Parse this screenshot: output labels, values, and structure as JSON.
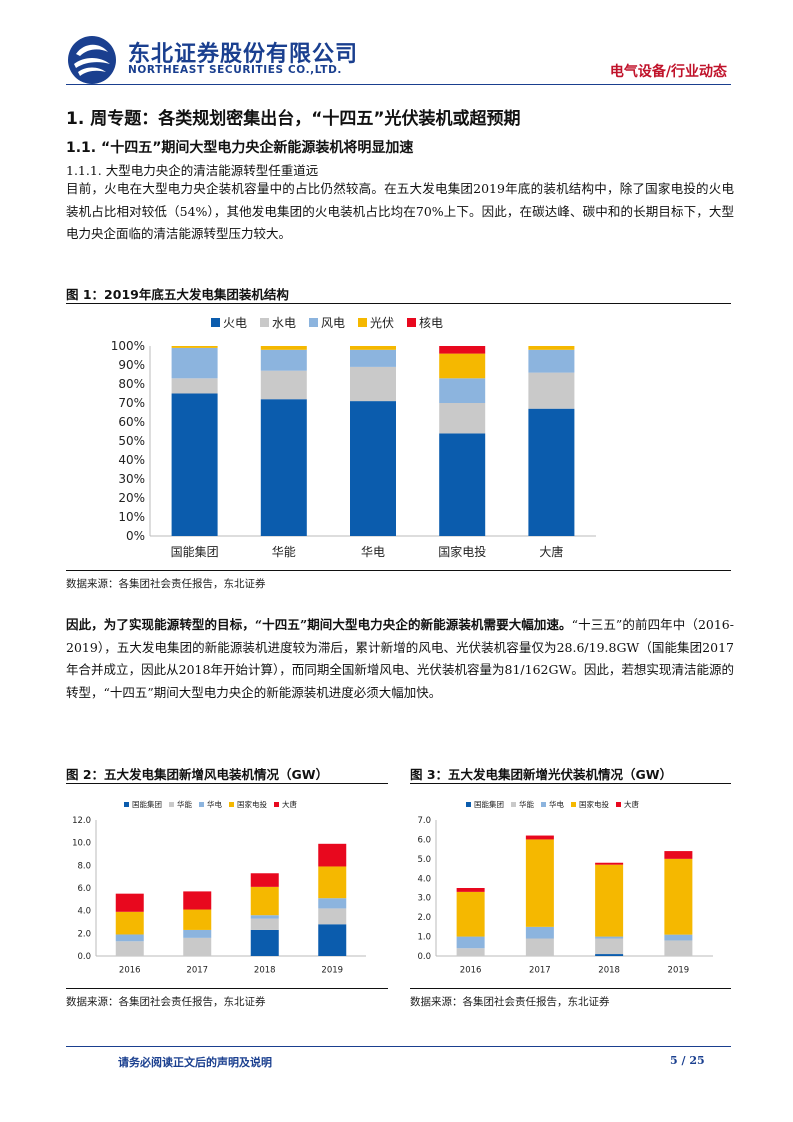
{
  "header": {
    "company_cn": "东北证券股份有限公司",
    "company_en": "NORTHEAST SECURITIES CO.,LTD.",
    "report_type": "电气设备/行业动态"
  },
  "section": {
    "h1": "1.  周专题：各类规划密集出台，“十四五”光伏装机或超预期",
    "h2": "1.1.   “十四五”期间大型电力央企新能源装机将明显加速",
    "h3": "1.1.1.   大型电力央企的清洁能源转型任重道远",
    "para1": "目前，火电在大型电力央企装机容量中的占比仍然较高。在五大发电集团2019年底的装机结构中，除了国家电投的火电装机占比相对较低（54%），其他发电集团的火电装机占比均在70%上下。因此，在碳达峰、碳中和的长期目标下，大型电力央企面临的清洁能源转型压力较大。",
    "para2_bold": "因此，为了实现能源转型的目标，“十四五”期间大型电力央企的新能源装机需要大幅加速。",
    "para2_rest": "“十三五”的前四年中（2016-2019），五大发电集团的新能源装机进度较为滞后，累计新增的风电、光伏装机容量仅为28.6/19.8GW（国能集团2017年合并成立，因此从2018年开始计算），而同期全国新增风电、光伏装机容量为81/162GW。因此，若想实现清洁能源的转型，“十四五”期间大型电力央企的新能源装机进度必须大幅加快。"
  },
  "figures": {
    "fig1_title": "图 1：2019年底五大发电集团装机结构",
    "fig2_title": "图 2：五大发电集团新增风电装机情况（GW）",
    "fig3_title": "图 3：五大发电集团新增光伏装机情况（GW）",
    "source": "数据来源：各集团社会责任报告，东北证券"
  },
  "chart_data": [
    {
      "type": "bar",
      "stacked": true,
      "title": "",
      "categories": [
        "国能集团",
        "华能",
        "华电",
        "国家电投",
        "大唐"
      ],
      "series": [
        {
          "name": "火电",
          "values": [
            75,
            72,
            71,
            54,
            67
          ],
          "color": "#0b5cad"
        },
        {
          "name": "水电",
          "values": [
            8,
            15,
            18,
            16,
            19
          ],
          "color": "#c9c9c9"
        },
        {
          "name": "风电",
          "values": [
            16,
            11,
            9,
            13,
            12
          ],
          "color": "#8cb4de"
        },
        {
          "name": "光伏",
          "values": [
            1,
            2,
            2,
            13,
            2
          ],
          "color": "#f5b800"
        },
        {
          "name": "核电",
          "values": [
            0,
            0,
            0,
            4,
            0
          ],
          "color": "#e8081e"
        }
      ],
      "yticks": [
        "0%",
        "10%",
        "20%",
        "30%",
        "40%",
        "50%",
        "60%",
        "70%",
        "80%",
        "90%",
        "100%"
      ],
      "ylim": [
        0,
        100
      ],
      "legend": "top"
    },
    {
      "type": "bar",
      "stacked": true,
      "title": "",
      "categories": [
        "2016",
        "2017",
        "2018",
        "2019"
      ],
      "series": [
        {
          "name": "国能集团",
          "values": [
            0,
            0,
            2.3,
            2.8
          ],
          "color": "#0b5cad"
        },
        {
          "name": "华能",
          "values": [
            1.3,
            1.6,
            1.0,
            1.4
          ],
          "color": "#c9c9c9"
        },
        {
          "name": "华电",
          "values": [
            0.6,
            0.7,
            0.3,
            0.9
          ],
          "color": "#8cb4de"
        },
        {
          "name": "国家电投",
          "values": [
            2.0,
            1.8,
            2.5,
            2.8
          ],
          "color": "#f5b800"
        },
        {
          "name": "大唐",
          "values": [
            1.6,
            1.6,
            1.2,
            2.0
          ],
          "color": "#e8081e"
        }
      ],
      "yticks": [
        "0.0",
        "2.0",
        "4.0",
        "6.0",
        "8.0",
        "10.0",
        "12.0"
      ],
      "ylim": [
        0,
        12
      ],
      "legend": "top"
    },
    {
      "type": "bar",
      "stacked": true,
      "title": "",
      "categories": [
        "2016",
        "2017",
        "2018",
        "2019"
      ],
      "series": [
        {
          "name": "国能集团",
          "values": [
            0,
            0,
            0.1,
            0
          ],
          "color": "#0b5cad"
        },
        {
          "name": "华能",
          "values": [
            0.4,
            0.9,
            0.8,
            0.8
          ],
          "color": "#c9c9c9"
        },
        {
          "name": "华电",
          "values": [
            0.6,
            0.6,
            0.1,
            0.3
          ],
          "color": "#8cb4de"
        },
        {
          "name": "国家电投",
          "values": [
            2.3,
            4.5,
            3.7,
            3.9
          ],
          "color": "#f5b800"
        },
        {
          "name": "大唐",
          "values": [
            0.2,
            0.2,
            0.1,
            0.4
          ],
          "color": "#e8081e"
        }
      ],
      "yticks": [
        "0.0",
        "1.0",
        "2.0",
        "3.0",
        "4.0",
        "5.0",
        "6.0",
        "7.0"
      ],
      "ylim": [
        0,
        7
      ],
      "legend": "top"
    }
  ],
  "footer": {
    "note": "请务必阅读正文后的声明及说明",
    "page": "5 / 25"
  },
  "icons": {
    "logo": "northeast-securities-logo-icon"
  }
}
